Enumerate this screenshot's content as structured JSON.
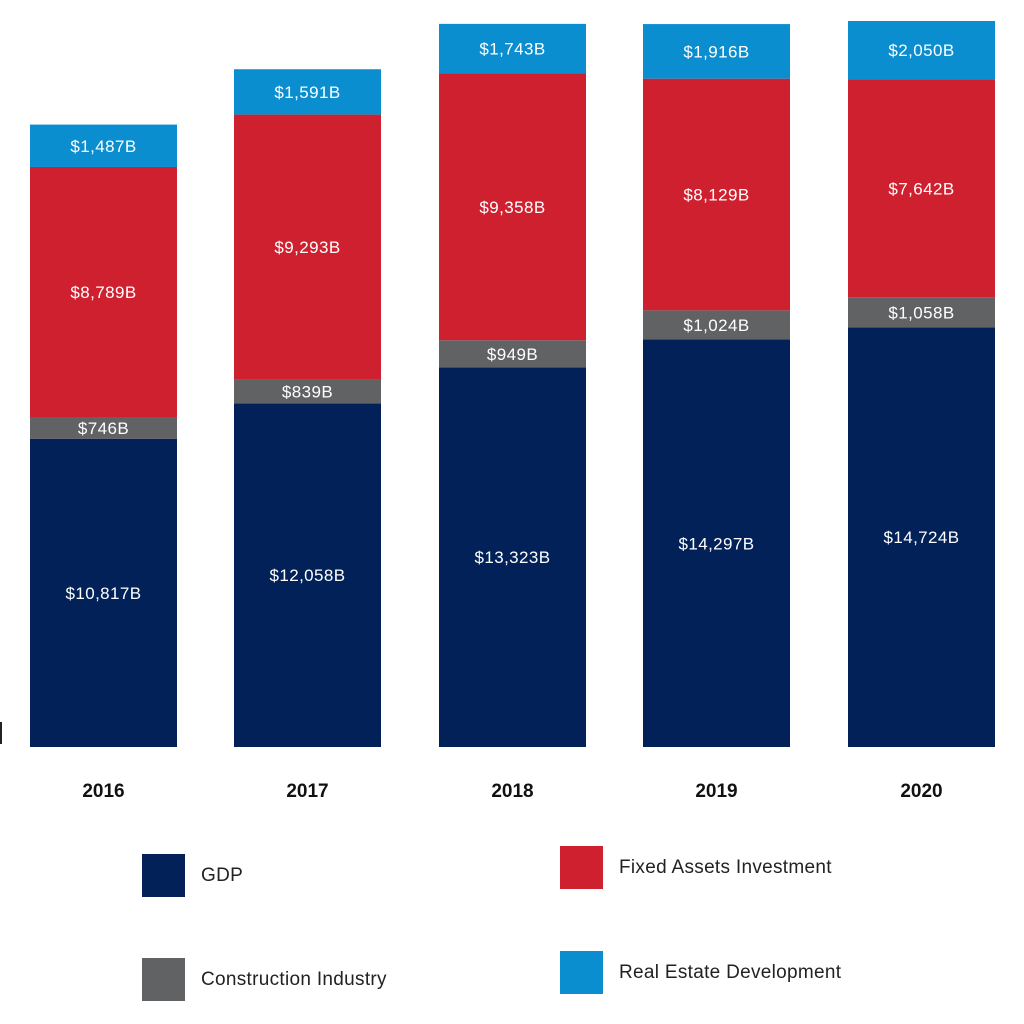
{
  "chart_data": {
    "type": "bar",
    "stacked": true,
    "categories": [
      "2016",
      "2017",
      "2018",
      "2019",
      "2020"
    ],
    "series": [
      {
        "name": "GDP",
        "color": "#012158",
        "values": [
          10817,
          12058,
          13323,
          14297,
          14724
        ],
        "labels": [
          "$10,817B",
          "$12,058B",
          "$13,323B",
          "$14,297B",
          "$14,724B"
        ]
      },
      {
        "name": "Construction Industry",
        "color": "#616264",
        "values": [
          746,
          839,
          949,
          1024,
          1058
        ],
        "labels": [
          "$746B",
          "$839B",
          "$949B",
          "$1,024B",
          "$1,058B"
        ]
      },
      {
        "name": "Fixed Assets Investment",
        "color": "#CF202F",
        "values": [
          8789,
          9293,
          9358,
          8129,
          7642
        ],
        "labels": [
          "$8,789B",
          "$9,293B",
          "$9,358B",
          "$8,129B",
          "$7,642B"
        ]
      },
      {
        "name": "Real Estate Development",
        "color": "#0B8ECF",
        "values": [
          1487,
          1591,
          1743,
          1916,
          2050
        ],
        "labels": [
          "$1,487B",
          "$1,591B",
          "$1,743B",
          "$1,916B",
          "$2,050B"
        ]
      }
    ],
    "legend_position": "bottom",
    "grid": false
  },
  "legend": [
    {
      "label": "GDP",
      "color": "#012158"
    },
    {
      "label": "Fixed Assets Investment",
      "color": "#CF202F"
    },
    {
      "label": "Construction Industry",
      "color": "#616264"
    },
    {
      "label": "Real Estate Development",
      "color": "#0B8ECF"
    }
  ]
}
